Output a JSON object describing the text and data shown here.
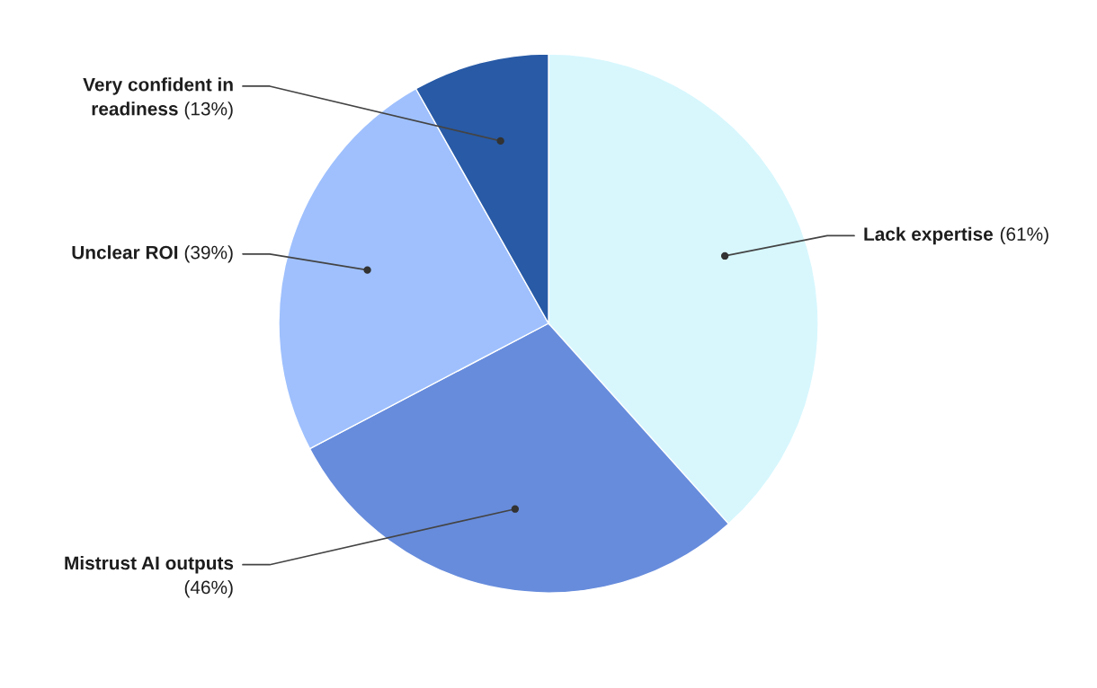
{
  "chart_data": {
    "type": "pie",
    "categories": [
      "Lack expertise",
      "Mistrust AI outputs",
      "Unclear ROI",
      "Very confident in readiness"
    ],
    "values": [
      61,
      46,
      39,
      13
    ],
    "value_labels": [
      "(61%)",
      "(46%)",
      "(39%)",
      "(13%)"
    ],
    "colors": [
      "#d7f7fd",
      "#678cdc",
      "#9fc0fd",
      "#285aa6"
    ]
  }
}
